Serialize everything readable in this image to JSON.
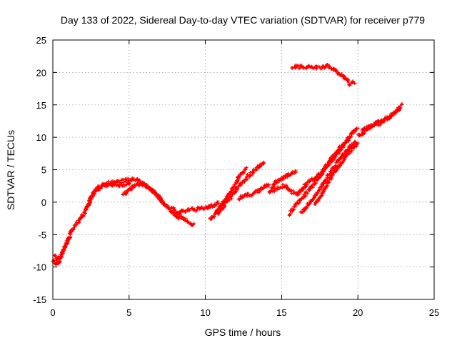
{
  "chart_data": {
    "type": "scatter",
    "title": "Day 133 of 2022, Sidereal Day-to-day VTEC variation (SDTVAR) for receiver p779",
    "xlabel": "GPS time / hours",
    "ylabel": "SDTVAR / TECUs",
    "xlim": [
      0,
      25
    ],
    "ylim": [
      -15,
      25
    ],
    "xticks": [
      "0",
      "5",
      "10",
      "15",
      "20",
      "25"
    ],
    "yticks": [
      "-15",
      "-10",
      "-5",
      "0",
      "5",
      "10",
      "15",
      "20",
      "25"
    ],
    "grid": true,
    "marker": "plus",
    "color": "#ff0000",
    "series": [
      {
        "values": [
          [
            0.05,
            -9
          ],
          [
            0.2,
            -9.6
          ],
          [
            0.4,
            -9.2
          ],
          [
            0.6,
            -8
          ],
          [
            0.8,
            -6.8
          ],
          [
            1.0,
            -6
          ],
          [
            1.2,
            -4.5
          ],
          [
            1.5,
            -3.5
          ],
          [
            1.8,
            -2.5
          ],
          [
            2.1,
            -1.5
          ],
          [
            2.4,
            0
          ],
          [
            2.7,
            1.5
          ],
          [
            3.0,
            2.2
          ],
          [
            3.3,
            2.8
          ],
          [
            3.7,
            3
          ],
          [
            4.1,
            3.1
          ],
          [
            4.5,
            3.2
          ],
          [
            4.9,
            3.4
          ],
          [
            5.2,
            3.5
          ],
          [
            5.6,
            3.3
          ],
          [
            6.0,
            2.6
          ],
          [
            6.4,
            2
          ],
          [
            6.8,
            1.2
          ],
          [
            7.2,
            0
          ],
          [
            7.6,
            -1
          ],
          [
            8.0,
            -2
          ],
          [
            8.3,
            -2.6
          ]
        ]
      },
      {
        "values": [
          [
            0.1,
            -8.2
          ],
          [
            0.3,
            -8.8
          ],
          [
            0.5,
            -8.4
          ],
          [
            0.7,
            -7.4
          ],
          [
            0.9,
            -6.2
          ],
          [
            1.1,
            -5.3
          ]
        ]
      },
      {
        "values": [
          [
            2.2,
            -1
          ],
          [
            2.5,
            0.6
          ],
          [
            2.8,
            1.8
          ],
          [
            3.2,
            2.4
          ],
          [
            3.6,
            2.6
          ],
          [
            4.0,
            2.7
          ],
          [
            4.4,
            2.6
          ],
          [
            4.8,
            2.8
          ],
          [
            5.1,
            3
          ]
        ]
      },
      {
        "values": [
          [
            4.6,
            1.2
          ],
          [
            5.0,
            1.8
          ],
          [
            5.4,
            2.6
          ],
          [
            5.8,
            2.8
          ],
          [
            6.2,
            2.4
          ],
          [
            6.6,
            1.8
          ],
          [
            7.0,
            0.4
          ],
          [
            7.4,
            -0.4
          ]
        ]
      },
      {
        "values": [
          [
            8.2,
            -1.6
          ],
          [
            8.6,
            -1.4
          ],
          [
            9.0,
            -1.2
          ],
          [
            9.4,
            -1.1
          ],
          [
            9.8,
            -1
          ],
          [
            10.2,
            -0.8
          ],
          [
            10.6,
            -0.4
          ],
          [
            10.9,
            0
          ]
        ]
      },
      {
        "values": [
          [
            7.8,
            -0.8
          ],
          [
            8.2,
            -1.8
          ],
          [
            8.6,
            -2.6
          ],
          [
            9.0,
            -3.2
          ],
          [
            9.3,
            -3.6
          ]
        ]
      },
      {
        "values": [
          [
            10.3,
            -2.8
          ],
          [
            10.7,
            -1.6
          ],
          [
            11.1,
            -0.2
          ],
          [
            11.5,
            1
          ],
          [
            11.9,
            2.6
          ],
          [
            12.3,
            4.2
          ],
          [
            12.7,
            5.2
          ]
        ]
      },
      {
        "values": [
          [
            10.8,
            -1.8
          ],
          [
            11.2,
            -0.6
          ],
          [
            11.6,
            0.6
          ],
          [
            12.0,
            1.8
          ],
          [
            12.4,
            3
          ],
          [
            12.8,
            4
          ],
          [
            13.2,
            4.8
          ],
          [
            13.6,
            5.6
          ],
          [
            13.9,
            6
          ]
        ]
      },
      {
        "values": [
          [
            12.2,
            0.6
          ],
          [
            12.6,
            1
          ],
          [
            13.0,
            1.2
          ],
          [
            13.4,
            1.6
          ],
          [
            13.8,
            2.2
          ],
          [
            14.2,
            2.8
          ]
        ]
      },
      {
        "values": [
          [
            14.2,
            1.6
          ],
          [
            14.6,
            3
          ],
          [
            15.0,
            3.6
          ],
          [
            15.4,
            4.2
          ],
          [
            15.8,
            4.6
          ],
          [
            16.0,
            4.8
          ]
        ]
      },
      {
        "values": [
          [
            14.4,
            1.8
          ],
          [
            14.8,
            2.2
          ],
          [
            15.2,
            2.6
          ],
          [
            15.6,
            1.6
          ],
          [
            16.0,
            1.2
          ],
          [
            16.4,
            2.2
          ],
          [
            16.8,
            3.2
          ],
          [
            17.2,
            3.8
          ],
          [
            17.6,
            4.4
          ],
          [
            18.0,
            5.6
          ],
          [
            18.4,
            6.8
          ],
          [
            18.8,
            8
          ],
          [
            19.2,
            9.2
          ],
          [
            19.6,
            10.6
          ],
          [
            20.0,
            11.4
          ]
        ]
      },
      {
        "values": [
          [
            15.5,
            -1.8
          ],
          [
            15.9,
            -0.6
          ],
          [
            16.3,
            0.4
          ],
          [
            16.7,
            1.6
          ],
          [
            17.1,
            2.6
          ],
          [
            17.5,
            4
          ],
          [
            17.9,
            5.6
          ],
          [
            18.3,
            6.8
          ],
          [
            18.7,
            8
          ],
          [
            19.1,
            9
          ],
          [
            19.5,
            9.8
          ]
        ]
      },
      {
        "values": [
          [
            16.3,
            -1.6
          ],
          [
            16.7,
            -0.6
          ],
          [
            17.1,
            0.6
          ],
          [
            17.5,
            2
          ],
          [
            17.9,
            3.6
          ],
          [
            18.3,
            5
          ],
          [
            18.7,
            6.4
          ],
          [
            19.1,
            7.6
          ],
          [
            19.5,
            8.6
          ],
          [
            19.9,
            9.4
          ]
        ]
      },
      {
        "values": [
          [
            17.2,
            -0.4
          ],
          [
            17.6,
            1
          ],
          [
            18.0,
            2.8
          ],
          [
            18.4,
            4.4
          ],
          [
            18.8,
            5.6
          ],
          [
            19.2,
            7
          ],
          [
            19.6,
            8.2
          ],
          [
            20.0,
            9
          ]
        ]
      },
      {
        "values": [
          [
            20.0,
            10.2
          ],
          [
            20.5,
            11
          ],
          [
            21.0,
            11.8
          ],
          [
            21.5,
            12.2
          ],
          [
            22.0,
            13
          ],
          [
            22.5,
            14
          ],
          [
            22.9,
            15
          ]
        ]
      },
      {
        "values": [
          [
            20.3,
            11.2
          ],
          [
            20.8,
            11.6
          ],
          [
            21.3,
            12.4
          ],
          [
            21.8,
            12.8
          ],
          [
            22.3,
            13.4
          ],
          [
            22.8,
            14.6
          ]
        ]
      },
      {
        "values": [
          [
            15.7,
            20.9
          ],
          [
            16.2,
            20.9
          ],
          [
            16.7,
            20.8
          ],
          [
            17.2,
            20.7
          ],
          [
            17.6,
            20.8
          ],
          [
            18.0,
            21
          ],
          [
            18.3,
            20.6
          ],
          [
            18.7,
            20
          ],
          [
            19.1,
            19.2
          ],
          [
            19.5,
            18.2
          ],
          [
            19.8,
            18.5
          ]
        ]
      }
    ]
  }
}
